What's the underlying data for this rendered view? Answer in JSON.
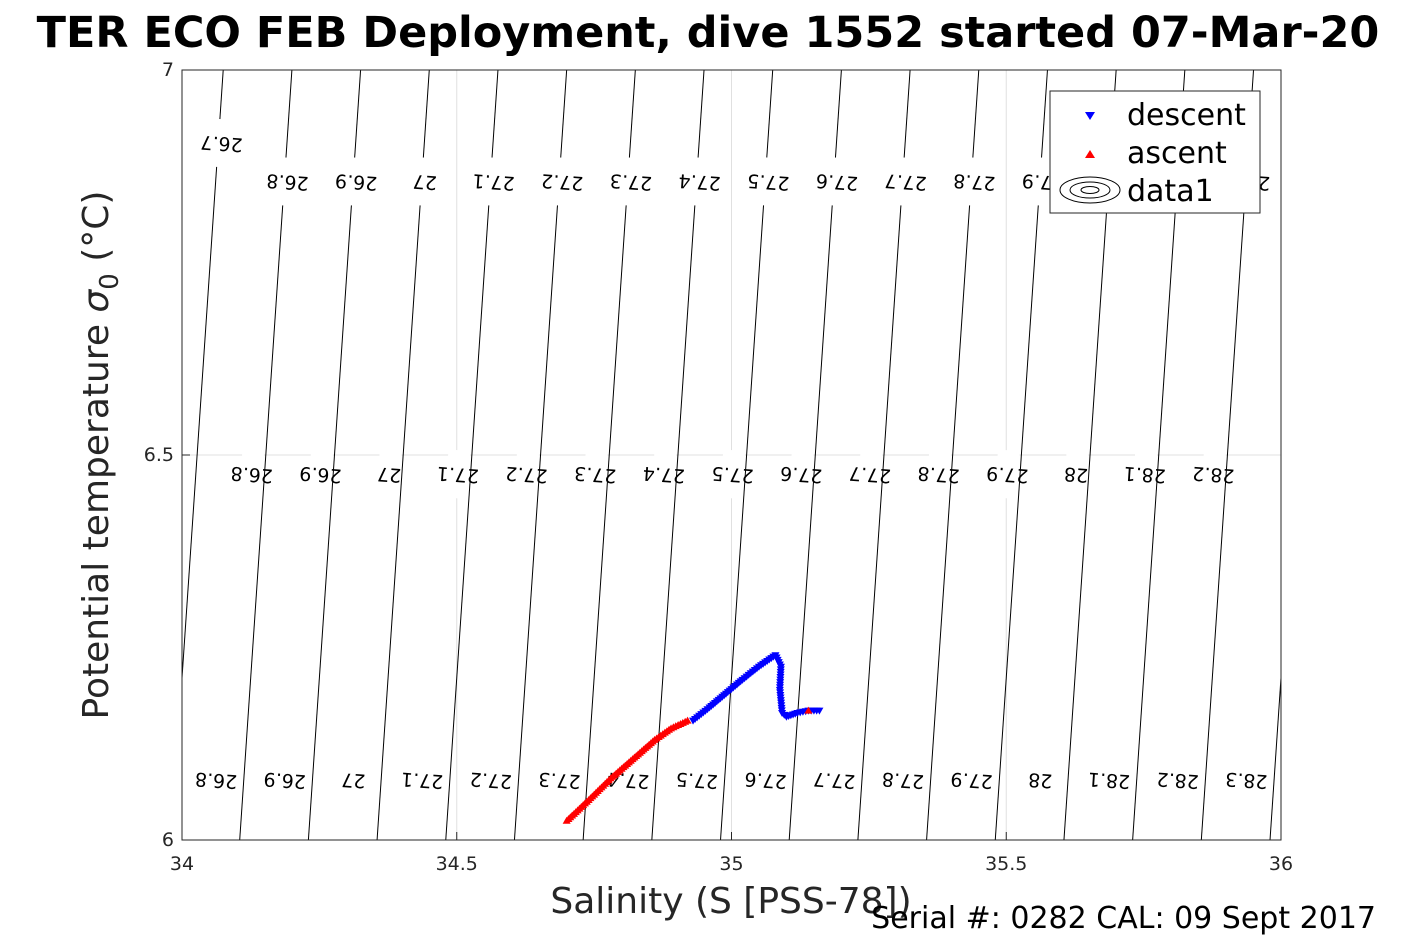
{
  "title": "TER ECO FEB Deployment, dive 1552 started 07-Mar-20",
  "footer": "Serial #: 0282  CAL: 09 Sept 2017",
  "chart_data": {
    "type": "scatter",
    "title": "TER ECO FEB Deployment, dive 1552 started 07-Mar-20",
    "xlabel": "Salinity (S [PSS-78])",
    "ylabel_main": "Potential temperature ",
    "ylabel_sigma": "σ",
    "ylabel_sub": "0",
    "ylabel_unit": " (°C)",
    "xlim": [
      34,
      36
    ],
    "ylim": [
      6,
      7
    ],
    "xticks": [
      "34",
      "34.5",
      "35",
      "35.5",
      "36"
    ],
    "yticks": [
      "6",
      "6.5",
      "7"
    ],
    "grid": true,
    "legend_position": "top-right",
    "legend": [
      "descent",
      "ascent",
      "data1"
    ],
    "colors": {
      "descent": "#0000ff",
      "ascent": "#ff0000",
      "contour": "#000000",
      "grid": "#e0e0e0"
    },
    "series": [
      {
        "name": "descent",
        "marker": "triangle-down",
        "color": "#0000ff",
        "x": [
          34.93,
          34.96,
          34.99,
          35.02,
          35.05,
          35.08,
          35.09,
          35.088,
          35.092,
          35.1,
          35.12,
          35.14,
          35.16
        ],
        "y": [
          6.155,
          6.172,
          6.19,
          6.208,
          6.225,
          6.24,
          6.225,
          6.195,
          6.165,
          6.16,
          6.165,
          6.168,
          6.168
        ]
      },
      {
        "name": "ascent",
        "marker": "triangle-up",
        "color": "#ff0000",
        "x": [
          34.7,
          34.74,
          34.78,
          34.82,
          34.86,
          34.89,
          34.92,
          35.14
        ],
        "y": [
          6.025,
          6.052,
          6.08,
          6.105,
          6.13,
          6.145,
          6.155,
          6.168
        ]
      }
    ],
    "contour_labels": [
      {
        "x": 34.072,
        "y": 6.905,
        "text": "26.7"
      },
      {
        "x": 34.192,
        "y": 6.855,
        "text": "26.8"
      },
      {
        "x": 34.317,
        "y": 6.855,
        "text": "26.9"
      },
      {
        "x": 34.442,
        "y": 6.855,
        "text": "27"
      },
      {
        "x": 34.567,
        "y": 6.855,
        "text": "27.1"
      },
      {
        "x": 34.692,
        "y": 6.855,
        "text": "27.2"
      },
      {
        "x": 34.817,
        "y": 6.855,
        "text": "27.3"
      },
      {
        "x": 34.942,
        "y": 6.855,
        "text": "27.4"
      },
      {
        "x": 35.067,
        "y": 6.855,
        "text": "27.5"
      },
      {
        "x": 35.192,
        "y": 6.855,
        "text": "27.6"
      },
      {
        "x": 35.317,
        "y": 6.855,
        "text": "27.7"
      },
      {
        "x": 35.442,
        "y": 6.855,
        "text": "27.8"
      },
      {
        "x": 35.567,
        "y": 6.855,
        "text": "27.9"
      },
      {
        "x": 35.942,
        "y": 6.855,
        "text": "28.2"
      },
      {
        "x": 34.127,
        "y": 6.475,
        "text": "26.8"
      },
      {
        "x": 34.252,
        "y": 6.475,
        "text": "26.9"
      },
      {
        "x": 34.377,
        "y": 6.475,
        "text": "27"
      },
      {
        "x": 34.502,
        "y": 6.475,
        "text": "27.1"
      },
      {
        "x": 34.627,
        "y": 6.475,
        "text": "27.2"
      },
      {
        "x": 34.752,
        "y": 6.475,
        "text": "27.3"
      },
      {
        "x": 34.877,
        "y": 6.475,
        "text": "27.4"
      },
      {
        "x": 35.002,
        "y": 6.475,
        "text": "27.5"
      },
      {
        "x": 35.127,
        "y": 6.475,
        "text": "27.6"
      },
      {
        "x": 35.252,
        "y": 6.475,
        "text": "27.7"
      },
      {
        "x": 35.377,
        "y": 6.475,
        "text": "27.8"
      },
      {
        "x": 35.502,
        "y": 6.475,
        "text": "27.9"
      },
      {
        "x": 35.627,
        "y": 6.475,
        "text": "28"
      },
      {
        "x": 35.752,
        "y": 6.475,
        "text": "28.1"
      },
      {
        "x": 35.877,
        "y": 6.475,
        "text": "28.2"
      },
      {
        "x": 34.062,
        "y": 6.078,
        "text": "26.8"
      },
      {
        "x": 34.187,
        "y": 6.078,
        "text": "26.9"
      },
      {
        "x": 34.312,
        "y": 6.078,
        "text": "27"
      },
      {
        "x": 34.437,
        "y": 6.078,
        "text": "27.1"
      },
      {
        "x": 34.562,
        "y": 6.078,
        "text": "27.2"
      },
      {
        "x": 34.687,
        "y": 6.078,
        "text": "27.3"
      },
      {
        "x": 34.812,
        "y": 6.078,
        "text": "27.4"
      },
      {
        "x": 34.937,
        "y": 6.078,
        "text": "27.5"
      },
      {
        "x": 35.062,
        "y": 6.078,
        "text": "27.6"
      },
      {
        "x": 35.187,
        "y": 6.078,
        "text": "27.7"
      },
      {
        "x": 35.312,
        "y": 6.078,
        "text": "27.8"
      },
      {
        "x": 35.437,
        "y": 6.078,
        "text": "27.9"
      },
      {
        "x": 35.562,
        "y": 6.078,
        "text": "28"
      },
      {
        "x": 35.687,
        "y": 6.078,
        "text": "28.1"
      },
      {
        "x": 35.812,
        "y": 6.078,
        "text": "28.2"
      },
      {
        "x": 35.937,
        "y": 6.078,
        "text": "28.3"
      }
    ]
  }
}
